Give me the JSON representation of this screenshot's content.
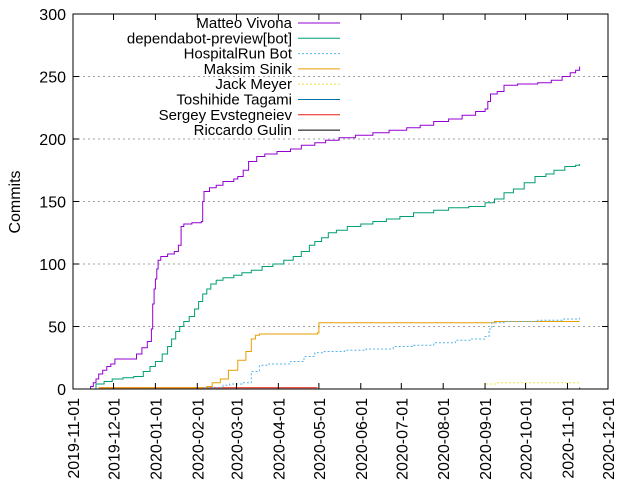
{
  "chart_data": {
    "type": "line",
    "title": "",
    "xlabel": "",
    "ylabel": "Commits",
    "x_is_date": true,
    "xlim": [
      "2019-11-01",
      "2020-12-01"
    ],
    "ylim": [
      0,
      300
    ],
    "yticks": [
      0,
      50,
      100,
      150,
      200,
      250,
      300
    ],
    "xticks": [
      "2019-11-01",
      "2019-12-01",
      "2020-01-01",
      "2020-02-01",
      "2020-03-01",
      "2020-04-01",
      "2020-05-01",
      "2020-06-01",
      "2020-07-01",
      "2020-08-01",
      "2020-09-01",
      "2020-10-01",
      "2020-11-01",
      "2020-12-01"
    ],
    "grid": "horizontal-dotted",
    "legend_position": "top-right",
    "series": [
      {
        "name": "Matteo Vivona",
        "color": "#9400d3",
        "dash": "",
        "points": [
          [
            "2019-11-12",
            0
          ],
          [
            "2019-11-14",
            2
          ],
          [
            "2019-11-16",
            5
          ],
          [
            "2019-11-18",
            8
          ],
          [
            "2019-11-20",
            12
          ],
          [
            "2019-11-23",
            15
          ],
          [
            "2019-11-26",
            18
          ],
          [
            "2019-11-29",
            20
          ],
          [
            "2019-12-02",
            24
          ],
          [
            "2019-12-10",
            24
          ],
          [
            "2019-12-18",
            28
          ],
          [
            "2019-12-22",
            33
          ],
          [
            "2019-12-26",
            38
          ],
          [
            "2019-12-29",
            48
          ],
          [
            "2019-12-30",
            68
          ],
          [
            "2019-12-31",
            80
          ],
          [
            "2020-01-01",
            88
          ],
          [
            "2020-01-02",
            96
          ],
          [
            "2020-01-03",
            103
          ],
          [
            "2020-01-05",
            106
          ],
          [
            "2020-01-10",
            108
          ],
          [
            "2020-01-15",
            110
          ],
          [
            "2020-01-18",
            115
          ],
          [
            "2020-01-20",
            130
          ],
          [
            "2020-01-22",
            132
          ],
          [
            "2020-01-28",
            133
          ],
          [
            "2020-02-04",
            134
          ],
          [
            "2020-02-05",
            150
          ],
          [
            "2020-02-06",
            158
          ],
          [
            "2020-02-10",
            161
          ],
          [
            "2020-02-15",
            163
          ],
          [
            "2020-02-20",
            166
          ],
          [
            "2020-02-28",
            168
          ],
          [
            "2020-03-02",
            170
          ],
          [
            "2020-03-06",
            175
          ],
          [
            "2020-03-10",
            182
          ],
          [
            "2020-03-16",
            186
          ],
          [
            "2020-03-22",
            188
          ],
          [
            "2020-03-31",
            190
          ],
          [
            "2020-04-10",
            192
          ],
          [
            "2020-04-18",
            195
          ],
          [
            "2020-04-28",
            197
          ],
          [
            "2020-05-06",
            199
          ],
          [
            "2020-05-16",
            201
          ],
          [
            "2020-05-28",
            203
          ],
          [
            "2020-06-10",
            205
          ],
          [
            "2020-06-22",
            207
          ],
          [
            "2020-07-05",
            209
          ],
          [
            "2020-07-15",
            211
          ],
          [
            "2020-07-25",
            214
          ],
          [
            "2020-08-05",
            216
          ],
          [
            "2020-08-15",
            219
          ],
          [
            "2020-08-25",
            222
          ],
          [
            "2020-09-01",
            224
          ],
          [
            "2020-09-03",
            230
          ],
          [
            "2020-09-05",
            236
          ],
          [
            "2020-09-10",
            238
          ],
          [
            "2020-09-15",
            243
          ],
          [
            "2020-09-25",
            244
          ],
          [
            "2020-10-10",
            245
          ],
          [
            "2020-10-20",
            247
          ],
          [
            "2020-10-28",
            250
          ],
          [
            "2020-11-03",
            253
          ],
          [
            "2020-11-07",
            255
          ],
          [
            "2020-11-10",
            258
          ]
        ]
      },
      {
        "name": "dependabot-preview[bot]",
        "color": "#009e73",
        "dash": "",
        "points": [
          [
            "2019-11-15",
            0
          ],
          [
            "2019-11-18",
            4
          ],
          [
            "2019-11-24",
            6
          ],
          [
            "2019-11-30",
            8
          ],
          [
            "2019-12-08",
            9
          ],
          [
            "2019-12-16",
            10
          ],
          [
            "2019-12-23",
            14
          ],
          [
            "2019-12-28",
            18
          ],
          [
            "2020-01-01",
            22
          ],
          [
            "2020-01-06",
            28
          ],
          [
            "2020-01-10",
            34
          ],
          [
            "2020-01-13",
            40
          ],
          [
            "2020-01-16",
            46
          ],
          [
            "2020-01-19",
            50
          ],
          [
            "2020-01-22",
            54
          ],
          [
            "2020-01-26",
            58
          ],
          [
            "2020-01-30",
            64
          ],
          [
            "2020-02-02",
            70
          ],
          [
            "2020-02-05",
            76
          ],
          [
            "2020-02-08",
            80
          ],
          [
            "2020-02-11",
            84
          ],
          [
            "2020-02-15",
            87
          ],
          [
            "2020-02-20",
            89
          ],
          [
            "2020-02-28",
            91
          ],
          [
            "2020-03-05",
            93
          ],
          [
            "2020-03-12",
            95
          ],
          [
            "2020-03-20",
            98
          ],
          [
            "2020-03-28",
            100
          ],
          [
            "2020-04-05",
            103
          ],
          [
            "2020-04-12",
            106
          ],
          [
            "2020-04-18",
            110
          ],
          [
            "2020-04-24",
            115
          ],
          [
            "2020-04-28",
            118
          ],
          [
            "2020-05-03",
            121
          ],
          [
            "2020-05-08",
            125
          ],
          [
            "2020-05-14",
            127
          ],
          [
            "2020-05-22",
            130
          ],
          [
            "2020-06-01",
            132
          ],
          [
            "2020-06-10",
            134
          ],
          [
            "2020-06-20",
            136
          ],
          [
            "2020-06-30",
            138
          ],
          [
            "2020-07-10",
            141
          ],
          [
            "2020-07-25",
            143
          ],
          [
            "2020-08-05",
            145
          ],
          [
            "2020-08-20",
            146
          ],
          [
            "2020-09-01",
            149
          ],
          [
            "2020-09-08",
            152
          ],
          [
            "2020-09-15",
            157
          ],
          [
            "2020-09-22",
            160
          ],
          [
            "2020-09-30",
            165
          ],
          [
            "2020-10-08",
            170
          ],
          [
            "2020-10-16",
            172
          ],
          [
            "2020-10-22",
            175
          ],
          [
            "2020-10-30",
            178
          ],
          [
            "2020-11-07",
            179
          ],
          [
            "2020-11-10",
            180
          ]
        ]
      },
      {
        "name": "HospitalRun Bot",
        "color": "#56b4e9",
        "dash": "2,2",
        "points": [
          [
            "2020-01-20",
            0
          ],
          [
            "2020-02-05",
            1
          ],
          [
            "2020-02-15",
            1
          ],
          [
            "2020-02-20",
            3
          ],
          [
            "2020-02-25",
            4
          ],
          [
            "2020-03-05",
            5
          ],
          [
            "2020-03-12",
            14
          ],
          [
            "2020-03-18",
            19
          ],
          [
            "2020-03-25",
            20
          ],
          [
            "2020-04-10",
            22
          ],
          [
            "2020-04-20",
            26
          ],
          [
            "2020-04-28",
            29
          ],
          [
            "2020-05-05",
            30
          ],
          [
            "2020-05-20",
            31
          ],
          [
            "2020-06-05",
            32
          ],
          [
            "2020-06-25",
            34
          ],
          [
            "2020-07-10",
            35
          ],
          [
            "2020-07-25",
            37
          ],
          [
            "2020-08-10",
            39
          ],
          [
            "2020-08-22",
            40
          ],
          [
            "2020-09-01",
            42
          ],
          [
            "2020-09-04",
            48
          ],
          [
            "2020-09-06",
            53
          ],
          [
            "2020-09-15",
            54
          ],
          [
            "2020-10-10",
            55
          ],
          [
            "2020-10-28",
            56
          ],
          [
            "2020-11-10",
            57
          ]
        ]
      },
      {
        "name": "Maksim Sinik",
        "color": "#e69f00",
        "dash": "",
        "points": [
          [
            "2019-11-20",
            1
          ],
          [
            "2020-02-05",
            1
          ],
          [
            "2020-02-08",
            2
          ],
          [
            "2020-02-12",
            5
          ],
          [
            "2020-02-18",
            8
          ],
          [
            "2020-02-24",
            15
          ],
          [
            "2020-03-02",
            23
          ],
          [
            "2020-03-08",
            30
          ],
          [
            "2020-03-12",
            40
          ],
          [
            "2020-03-15",
            43
          ],
          [
            "2020-03-18",
            44
          ],
          [
            "2020-04-30",
            45
          ],
          [
            "2020-05-01",
            53
          ],
          [
            "2020-09-05",
            53
          ],
          [
            "2020-09-08",
            54
          ],
          [
            "2020-11-10",
            54
          ]
        ]
      },
      {
        "name": "Jack Meyer",
        "color": "#f0e442",
        "dash": "2,2",
        "points": [
          [
            "2020-09-02",
            4
          ],
          [
            "2020-09-10",
            5
          ],
          [
            "2020-10-10",
            5
          ],
          [
            "2020-11-10",
            5
          ]
        ]
      },
      {
        "name": "Toshihide Tagami",
        "color": "#0072b2",
        "dash": "",
        "points": [
          [
            "2019-11-15",
            0
          ],
          [
            "2020-11-10",
            1
          ]
        ]
      },
      {
        "name": "Sergey Evstegneiev",
        "color": "#e51e10",
        "dash": "",
        "points": [
          [
            "2019-11-20",
            1
          ],
          [
            "2020-04-30",
            1
          ]
        ]
      },
      {
        "name": "Riccardo Gulin",
        "color": "#000000",
        "dash": "",
        "points": [
          [
            "2020-02-01",
            0
          ],
          [
            "2020-11-10",
            1
          ]
        ]
      }
    ]
  }
}
